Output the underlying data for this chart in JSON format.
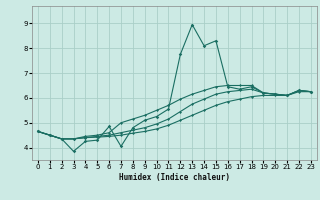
{
  "xlabel": "Humidex (Indice chaleur)",
  "background_color": "#cceae4",
  "grid_color": "#aacfc8",
  "line_color": "#1a6e62",
  "xlim": [
    -0.5,
    23.5
  ],
  "ylim": [
    3.5,
    9.7
  ],
  "xticks": [
    0,
    1,
    2,
    3,
    4,
    5,
    6,
    7,
    8,
    9,
    10,
    11,
    12,
    13,
    14,
    15,
    16,
    17,
    18,
    19,
    20,
    21,
    22,
    23
  ],
  "yticks": [
    4,
    5,
    6,
    7,
    8,
    9
  ],
  "series": [
    {
      "x": [
        0,
        1,
        2,
        3,
        4,
        5,
        6,
        7,
        8,
        9,
        10,
        11,
        12,
        13,
        14,
        15,
        16,
        17,
        18,
        19,
        20,
        21,
        22,
        23
      ],
      "y": [
        4.65,
        4.5,
        4.35,
        3.85,
        4.25,
        4.3,
        4.85,
        4.05,
        4.8,
        5.1,
        5.25,
        5.55,
        7.75,
        8.95,
        8.1,
        8.3,
        6.45,
        6.35,
        6.45,
        6.2,
        6.15,
        6.1,
        6.3,
        6.25
      ]
    },
    {
      "x": [
        0,
        1,
        2,
        3,
        4,
        5,
        6,
        7,
        8,
        9,
        10,
        11,
        12,
        13,
        14,
        15,
        16,
        17,
        18,
        19,
        20,
        21,
        22,
        23
      ],
      "y": [
        4.65,
        4.5,
        4.35,
        4.35,
        4.45,
        4.5,
        4.6,
        5.0,
        5.15,
        5.3,
        5.5,
        5.7,
        5.95,
        6.15,
        6.3,
        6.45,
        6.5,
        6.5,
        6.5,
        6.2,
        6.15,
        6.1,
        6.3,
        6.25
      ]
    },
    {
      "x": [
        0,
        1,
        2,
        3,
        4,
        5,
        6,
        7,
        8,
        9,
        10,
        11,
        12,
        13,
        14,
        15,
        16,
        17,
        18,
        19,
        20,
        21,
        22,
        23
      ],
      "y": [
        4.65,
        4.5,
        4.35,
        4.35,
        4.4,
        4.45,
        4.5,
        4.6,
        4.7,
        4.8,
        4.95,
        5.15,
        5.45,
        5.75,
        5.95,
        6.15,
        6.25,
        6.3,
        6.35,
        6.2,
        6.15,
        6.1,
        6.3,
        6.25
      ]
    },
    {
      "x": [
        0,
        1,
        2,
        3,
        4,
        5,
        6,
        7,
        8,
        9,
        10,
        11,
        12,
        13,
        14,
        15,
        16,
        17,
        18,
        19,
        20,
        21,
        22,
        23
      ],
      "y": [
        4.65,
        4.5,
        4.35,
        4.35,
        4.4,
        4.42,
        4.45,
        4.5,
        4.58,
        4.65,
        4.75,
        4.9,
        5.1,
        5.3,
        5.5,
        5.7,
        5.85,
        5.95,
        6.05,
        6.1,
        6.1,
        6.1,
        6.25,
        6.25
      ]
    }
  ]
}
